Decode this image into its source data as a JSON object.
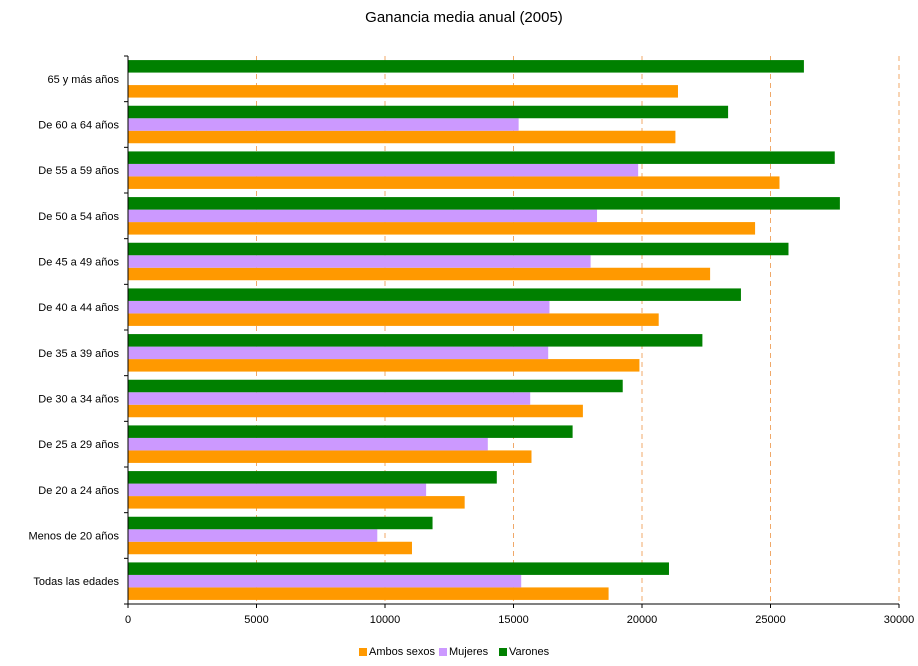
{
  "chart_data": {
    "type": "bar",
    "orientation": "horizontal",
    "title": "Ganancia media anual (2005)",
    "categories": [
      "Todas las edades",
      "Menos de 20 años",
      "De 20 a 24 años",
      "De 25 a 29 años",
      "De 30 a 34 años",
      "De 35 a 39 años",
      "De 40 a 44 años",
      "De 45 a 49 años",
      "De 50 a 54 años",
      "De 55 a 59 años",
      "De 60 a 64 años",
      "65 y más años"
    ],
    "series": [
      {
        "name": "Ambos sexos",
        "color": "#ff9900",
        "values": [
          18700,
          11050,
          13100,
          15700,
          17700,
          19900,
          20650,
          22650,
          24400,
          25350,
          21300,
          21400
        ]
      },
      {
        "name": "Mujeres",
        "color": "#cc99ff",
        "values": [
          15300,
          9700,
          11600,
          14000,
          15650,
          16350,
          16400,
          18000,
          18250,
          19850,
          15200,
          null
        ]
      },
      {
        "name": "Varones",
        "color": "#008000",
        "values": [
          21050,
          11850,
          14350,
          17300,
          19250,
          22350,
          23850,
          25700,
          27700,
          27500,
          23350,
          26300
        ]
      }
    ],
    "x_ticks": [
      "0",
      "5000",
      "10000",
      "15000",
      "20000",
      "25000",
      "30000"
    ],
    "xlim": [
      0,
      30000
    ],
    "grid": "vertical dashed",
    "legend": "bottom"
  }
}
